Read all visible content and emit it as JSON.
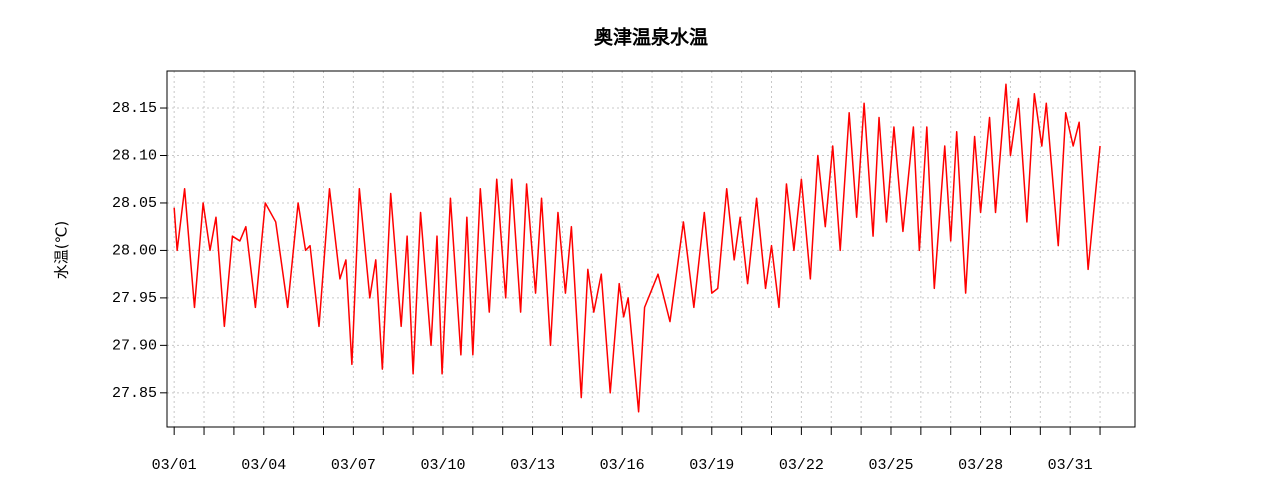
{
  "chart_data": {
    "type": "line",
    "title": "奥津温泉水温",
    "ylabel": "水温(℃)",
    "color": "#ff0000",
    "grid": true,
    "x": [
      1.0,
      1.1,
      1.35,
      1.68,
      1.97,
      2.2,
      2.4,
      2.68,
      2.95,
      3.2,
      3.4,
      3.72,
      4.05,
      4.4,
      4.8,
      5.15,
      5.4,
      5.55,
      5.85,
      6.2,
      6.55,
      6.75,
      6.95,
      7.2,
      7.55,
      7.75,
      7.97,
      8.25,
      8.6,
      8.8,
      9.0,
      9.25,
      9.6,
      9.8,
      9.97,
      10.25,
      10.6,
      10.8,
      11.0,
      11.25,
      11.55,
      11.8,
      12.1,
      12.3,
      12.6,
      12.8,
      13.1,
      13.3,
      13.6,
      13.85,
      14.1,
      14.3,
      14.63,
      14.85,
      15.05,
      15.3,
      15.6,
      15.9,
      16.05,
      16.2,
      16.55,
      16.75,
      17.2,
      17.6,
      18.05,
      18.4,
      18.75,
      19.0,
      19.2,
      19.5,
      19.75,
      19.95,
      20.2,
      20.5,
      20.8,
      21.0,
      21.25,
      21.5,
      21.75,
      22.0,
      22.3,
      22.55,
      22.8,
      23.05,
      23.3,
      23.6,
      23.85,
      24.1,
      24.4,
      24.6,
      24.85,
      25.1,
      25.4,
      25.75,
      25.95,
      26.2,
      26.45,
      26.8,
      27.0,
      27.2,
      27.5,
      27.8,
      28.0,
      28.3,
      28.5,
      28.85,
      29.0,
      29.27,
      29.55,
      29.8,
      30.05,
      30.2,
      30.6,
      30.85,
      31.1,
      31.3,
      31.6,
      32.0
    ],
    "values": [
      28.045,
      28.0,
      28.065,
      27.94,
      28.05,
      28.0,
      28.035,
      27.92,
      28.015,
      28.01,
      28.025,
      27.94,
      28.05,
      28.03,
      27.94,
      28.05,
      28.0,
      28.005,
      27.92,
      28.065,
      27.97,
      27.99,
      27.88,
      28.065,
      27.95,
      27.99,
      27.875,
      28.06,
      27.92,
      28.015,
      27.87,
      28.04,
      27.9,
      28.015,
      27.87,
      28.055,
      27.89,
      28.035,
      27.89,
      28.065,
      27.935,
      28.075,
      27.95,
      28.075,
      27.935,
      28.07,
      27.955,
      28.055,
      27.9,
      28.04,
      27.955,
      28.025,
      27.845,
      27.98,
      27.935,
      27.975,
      27.85,
      27.965,
      27.93,
      27.95,
      27.83,
      27.94,
      27.975,
      27.925,
      28.03,
      27.94,
      28.04,
      27.955,
      27.96,
      28.065,
      27.99,
      28.035,
      27.965,
      28.055,
      27.96,
      28.005,
      27.94,
      28.07,
      28.0,
      28.075,
      27.97,
      28.1,
      28.025,
      28.11,
      28.0,
      28.145,
      28.035,
      28.155,
      28.015,
      28.14,
      28.03,
      28.13,
      28.02,
      28.13,
      28.0,
      28.13,
      27.96,
      28.11,
      28.01,
      28.125,
      27.955,
      28.12,
      28.04,
      28.14,
      28.04,
      28.175,
      28.1,
      28.16,
      28.03,
      28.165,
      28.11,
      28.155,
      28.005,
      28.145,
      28.11,
      28.135,
      27.98,
      28.11
    ],
    "xlim": [
      0.76,
      33.17
    ],
    "xticks": [
      {
        "value": 1,
        "label": "03/01"
      },
      {
        "value": 4,
        "label": "03/04"
      },
      {
        "value": 7,
        "label": "03/07"
      },
      {
        "value": 10,
        "label": "03/10"
      },
      {
        "value": 13,
        "label": "03/13"
      },
      {
        "value": 16,
        "label": "03/16"
      },
      {
        "value": 19,
        "label": "03/19"
      },
      {
        "value": 22,
        "label": "03/22"
      },
      {
        "value": 25,
        "label": "03/25"
      },
      {
        "value": 28,
        "label": "03/28"
      },
      {
        "value": 31,
        "label": "03/31"
      }
    ],
    "xminorticks": [
      2,
      3,
      5,
      6,
      8,
      9,
      11,
      12,
      14,
      15,
      17,
      18,
      20,
      21,
      23,
      24,
      26,
      27,
      29,
      30,
      32
    ],
    "ylim": [
      27.814,
      28.189
    ],
    "yticks": [
      {
        "value": 27.85,
        "label": "27.85"
      },
      {
        "value": 27.9,
        "label": "27.90"
      },
      {
        "value": 27.95,
        "label": "27.95"
      },
      {
        "value": 28.0,
        "label": "28.00"
      },
      {
        "value": 28.05,
        "label": "28.05"
      },
      {
        "value": 28.1,
        "label": "28.10"
      },
      {
        "value": 28.15,
        "label": "28.15"
      }
    ]
  }
}
